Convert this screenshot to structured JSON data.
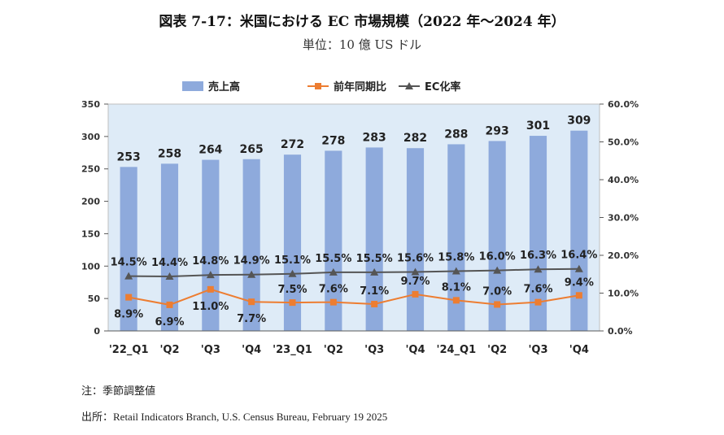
{
  "title": "図表 7-17：米国における EC 市場規模（2022 年〜2024 年）",
  "subtitle": "単位：10 億 US ドル",
  "note": "注：季節調整値",
  "source": "出所：Retail Indicators Branch, U.S. Census Bureau, February 19 2025",
  "chart_data": {
    "type": "bar",
    "categories": [
      "'22_Q1",
      "'Q2",
      "'Q3",
      "'Q4",
      "'23_Q1",
      "'Q2",
      "'Q3",
      "'Q4",
      "'24_Q1",
      "'Q2",
      "'Q3",
      "'Q4"
    ],
    "series": [
      {
        "name": "売上高",
        "type": "bar",
        "axis": "left",
        "color": "#8eaadc",
        "values": [
          253,
          258,
          264,
          265,
          272,
          278,
          283,
          282,
          288,
          293,
          301,
          309
        ],
        "labels": [
          "253",
          "258",
          "264",
          "265",
          "272",
          "278",
          "283",
          "282",
          "288",
          "293",
          "301",
          "309"
        ]
      },
      {
        "name": "前年同期比",
        "type": "line",
        "axis": "right",
        "color": "#ed7d31",
        "marker": "square",
        "values": [
          8.9,
          6.9,
          11.0,
          7.7,
          7.5,
          7.6,
          7.1,
          9.7,
          8.1,
          7.0,
          7.6,
          9.4
        ],
        "labels": [
          "8.9%",
          "6.9%",
          "11.0%",
          "7.7%",
          "7.5%",
          "7.6%",
          "7.1%",
          "9.7%",
          "8.1%",
          "7.0%",
          "7.6%",
          "9.4%"
        ]
      },
      {
        "name": "EC化率",
        "type": "line",
        "axis": "right",
        "color": "#555555",
        "marker": "triangle",
        "values": [
          14.5,
          14.4,
          14.8,
          14.9,
          15.1,
          15.5,
          15.5,
          15.6,
          15.8,
          16.0,
          16.3,
          16.4
        ],
        "labels": [
          "14.5%",
          "14.4%",
          "14.8%",
          "14.9%",
          "15.1%",
          "15.5%",
          "15.5%",
          "15.6%",
          "15.8%",
          "16.0%",
          "16.3%",
          "16.4%"
        ]
      }
    ],
    "y_left": {
      "min": 0,
      "max": 350,
      "ticks": [
        "0",
        "50",
        "100",
        "150",
        "200",
        "250",
        "300",
        "350"
      ]
    },
    "y_right": {
      "min": 0,
      "max": 60,
      "ticks": [
        "0.0%",
        "10.0%",
        "20.0%",
        "30.0%",
        "40.0%",
        "50.0%",
        "60.0%"
      ]
    },
    "legend_position": "top",
    "plot_background": "#deebf7",
    "grid": false
  }
}
